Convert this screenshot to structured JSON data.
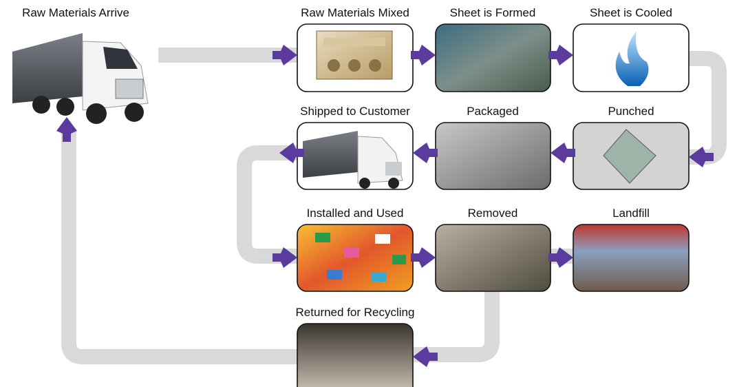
{
  "nodes": [
    {
      "label": "Raw Materials Arrive"
    },
    {
      "label": "Raw Materials Mixed"
    },
    {
      "label": "Sheet is Formed"
    },
    {
      "label": "Sheet is Cooled"
    },
    {
      "label": "Shipped to Customer"
    },
    {
      "label": "Packaged"
    },
    {
      "label": "Punched"
    },
    {
      "label": "Installed and Used"
    },
    {
      "label": "Removed"
    },
    {
      "label": "Landfill"
    },
    {
      "label": "Returned for Recycling"
    }
  ]
}
